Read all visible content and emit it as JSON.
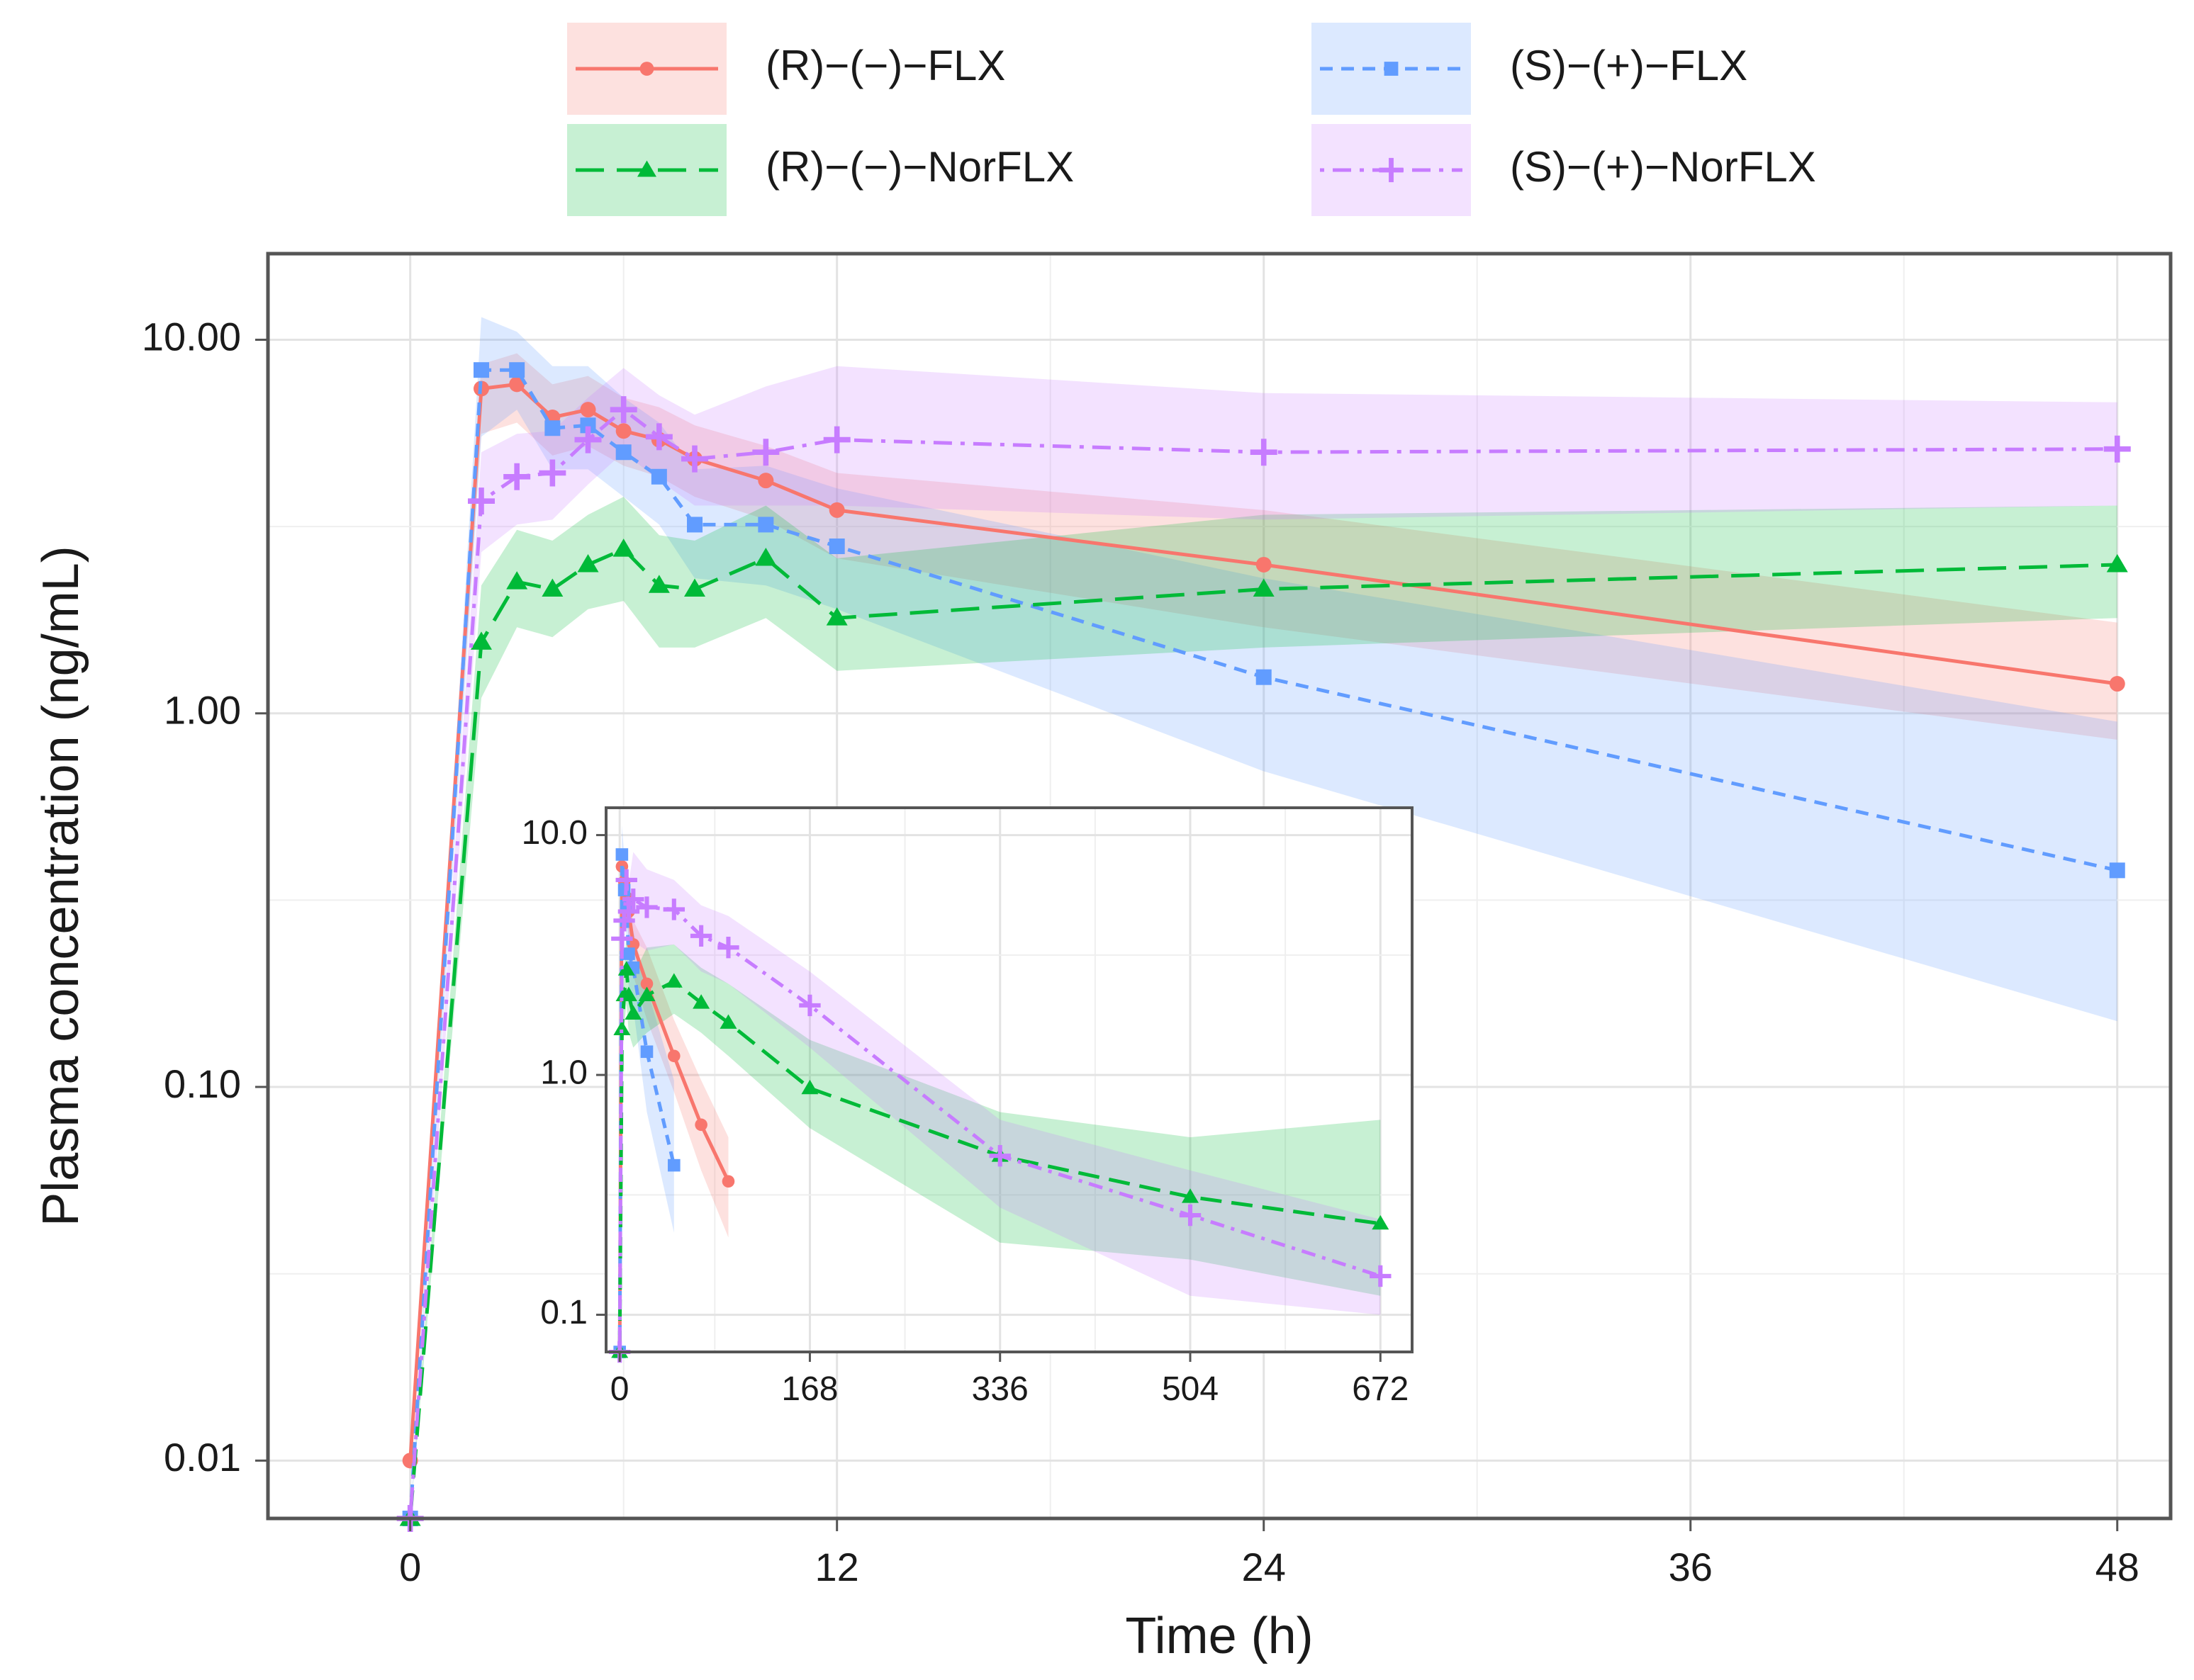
{
  "chart_data": [
    {
      "type": "line",
      "title": "",
      "xlabel": "Time (h)",
      "ylabel": "Plasma concentration (ng/mL)",
      "yscale": "log",
      "xlim": [
        -4,
        49.5
      ],
      "ylim": [
        0.007,
        17
      ],
      "xticks": [
        0,
        12,
        24,
        36,
        48
      ],
      "xtick_labels": [
        "0",
        "12",
        "24",
        "36",
        "48"
      ],
      "yticks": [
        0.01,
        0.1,
        1,
        10
      ],
      "ytick_labels": [
        "0.01",
        "0.10",
        "1.00",
        "10.00"
      ],
      "grid": true,
      "legend_position": "top",
      "series": [
        {
          "name": "(R)−(−)−FLX",
          "color": "#F8766D",
          "marker": "circle",
          "linestyle": "solid",
          "x": [
            0,
            2,
            3,
            4,
            5,
            6,
            7,
            8,
            10,
            12,
            24,
            48
          ],
          "y": [
            0.01,
            7.4,
            7.6,
            6.2,
            6.5,
            5.7,
            5.4,
            4.8,
            4.2,
            3.5,
            2.5,
            1.2
          ],
          "lower": [
            0.01,
            5.6,
            6.0,
            4.9,
            5.2,
            4.6,
            4.3,
            3.8,
            3.3,
            2.6,
            1.7,
            0.85
          ],
          "upper": [
            0.01,
            8.6,
            9.2,
            7.6,
            8.0,
            7.0,
            6.6,
            5.9,
            5.2,
            4.4,
            3.5,
            1.75
          ]
        },
        {
          "name": "(S)−(+)−FLX",
          "color": "#619CFF",
          "marker": "square",
          "linestyle": "dashed",
          "x": [
            0,
            2,
            3,
            4,
            5,
            6,
            7,
            8,
            10,
            12,
            24,
            48
          ],
          "y": [
            0.007,
            8.3,
            8.3,
            5.8,
            5.9,
            5.0,
            4.3,
            3.2,
            3.2,
            2.8,
            1.25,
            0.38
          ],
          "lower": [
            0.007,
            5.5,
            6.5,
            4.5,
            4.5,
            3.8,
            3.2,
            2.3,
            2.2,
            1.9,
            0.7,
            0.15
          ],
          "upper": [
            0.007,
            11.5,
            10.5,
            8.5,
            8.5,
            7.0,
            6.0,
            4.5,
            4.6,
            4.0,
            2.3,
            0.95
          ]
        },
        {
          "name": "(R)−(−)−NorFLX",
          "color": "#00BA38",
          "marker": "triangle",
          "linestyle": "longdash",
          "x": [
            0,
            2,
            3,
            4,
            5,
            6,
            7,
            8,
            10,
            12,
            24,
            48
          ],
          "y": [
            0.007,
            1.55,
            2.25,
            2.15,
            2.5,
            2.75,
            2.2,
            2.15,
            2.6,
            1.8,
            2.15,
            2.5
          ],
          "lower": [
            0.007,
            1.1,
            1.7,
            1.6,
            1.9,
            2.0,
            1.5,
            1.5,
            1.8,
            1.3,
            1.5,
            1.8
          ],
          "upper": [
            0.007,
            2.2,
            3.1,
            2.9,
            3.4,
            3.8,
            3.0,
            2.9,
            3.6,
            2.6,
            3.4,
            3.6
          ]
        },
        {
          "name": "(S)−(+)−NorFLX",
          "color": "#C77CFF",
          "marker": "plus",
          "linestyle": "dotdash",
          "x": [
            0,
            2,
            3,
            4,
            5,
            6,
            7,
            8,
            10,
            12,
            24,
            48
          ],
          "y": [
            0.007,
            3.7,
            4.3,
            4.4,
            5.4,
            6.5,
            5.5,
            4.8,
            5.0,
            5.4,
            5.0,
            5.1
          ],
          "lower": [
            0.007,
            2.7,
            3.2,
            3.3,
            4.1,
            5.0,
            4.2,
            3.6,
            3.6,
            3.6,
            3.3,
            3.6
          ],
          "upper": [
            0.007,
            5.0,
            5.6,
            5.7,
            7.0,
            8.4,
            7.1,
            6.3,
            7.5,
            8.5,
            7.2,
            6.8
          ]
        }
      ]
    },
    {
      "type": "line",
      "title": "",
      "xlabel": "",
      "ylabel": "",
      "yscale": "log",
      "xlim": [
        -12,
        700
      ],
      "ylim": [
        0.07,
        13
      ],
      "xticks": [
        0,
        168,
        336,
        504,
        672
      ],
      "xtick_labels": [
        "0",
        "168",
        "336",
        "504",
        "672"
      ],
      "yticks": [
        0.1,
        1,
        10
      ],
      "ytick_labels": [
        "0.1",
        "1.0",
        "10.0"
      ],
      "grid": true,
      "series": [
        {
          "name": "(R)−(−)−FLX",
          "color": "#F8766D",
          "marker": "circle",
          "linestyle": "solid",
          "x": [
            0,
            2,
            4,
            6,
            8,
            12,
            24,
            48,
            72,
            96
          ],
          "y": [
            0.07,
            7.4,
            6.4,
            5.5,
            4.8,
            3.5,
            2.4,
            1.2,
            0.62,
            0.36
          ],
          "lower": [
            0.07,
            5.6,
            5.0,
            4.3,
            3.8,
            2.6,
            1.7,
            0.85,
            0.4,
            0.21
          ],
          "upper": [
            0.07,
            8.6,
            7.8,
            6.8,
            5.9,
            4.4,
            3.4,
            1.7,
            0.95,
            0.55
          ]
        },
        {
          "name": "(S)−(+)−FLX",
          "color": "#619CFF",
          "marker": "square",
          "linestyle": "dashed",
          "x": [
            0,
            2,
            4,
            6,
            8,
            12,
            24,
            48
          ],
          "y": [
            0.07,
            8.3,
            5.9,
            5.0,
            3.2,
            2.8,
            1.25,
            0.42
          ],
          "lower": [
            0.07,
            5.5,
            4.5,
            3.8,
            2.3,
            1.9,
            0.7,
            0.22
          ],
          "upper": [
            0.07,
            11.0,
            8.2,
            7.0,
            4.5,
            4.0,
            2.3,
            0.95
          ]
        },
        {
          "name": "(R)−(−)−NorFLX",
          "color": "#00BA38",
          "marker": "triangle",
          "linestyle": "longdash",
          "x": [
            0,
            2,
            4,
            6,
            8,
            12,
            24,
            48,
            72,
            96,
            168,
            336,
            504,
            672
          ],
          "y": [
            0.07,
            1.55,
            2.15,
            2.75,
            2.15,
            1.8,
            2.15,
            2.45,
            2.0,
            1.65,
            0.88,
            0.46,
            0.31,
            0.24
          ],
          "lower": [
            0.07,
            1.1,
            1.6,
            2.0,
            1.5,
            1.3,
            1.5,
            1.8,
            1.5,
            1.2,
            0.6,
            0.2,
            0.17,
            0.12
          ],
          "upper": [
            0.07,
            2.2,
            2.9,
            3.8,
            2.9,
            2.6,
            3.4,
            3.5,
            2.8,
            2.4,
            1.4,
            0.7,
            0.55,
            0.65
          ]
        },
        {
          "name": "(S)−(+)−NorFLX",
          "color": "#C77CFF",
          "marker": "plus",
          "linestyle": "dotdash",
          "x": [
            0,
            2,
            4,
            6,
            8,
            12,
            24,
            48,
            72,
            96,
            168,
            336,
            504,
            672
          ],
          "y": [
            0.07,
            3.7,
            4.4,
            6.5,
            4.8,
            5.4,
            5.0,
            4.9,
            3.8,
            3.4,
            1.95,
            0.46,
            0.26,
            0.145
          ],
          "lower": [
            0.07,
            2.7,
            3.3,
            5.0,
            3.6,
            3.6,
            3.3,
            3.5,
            2.7,
            2.4,
            1.3,
            0.28,
            0.12,
            0.1
          ],
          "upper": [
            0.07,
            5.0,
            5.7,
            8.4,
            6.3,
            8.5,
            7.2,
            6.5,
            5.1,
            4.6,
            2.7,
            0.65,
            0.4,
            0.25
          ]
        }
      ]
    }
  ]
}
